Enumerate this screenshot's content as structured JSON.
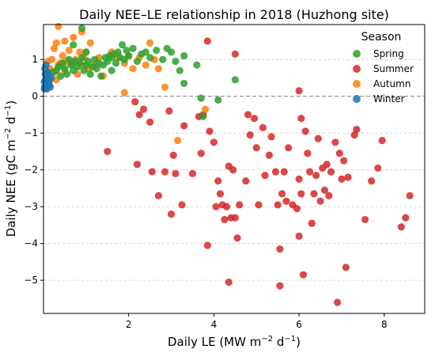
{
  "chart_data": {
    "type": "scatter",
    "title": "Daily NEE–LE relationship in 2018 (Huzhong site)",
    "xlabel": {
      "main": "Daily LE (MW m",
      "sup": "−2",
      "mid": " d",
      "sup2": "−1",
      "end": ")"
    },
    "ylabel": {
      "main": "Daily NEE (gC m",
      "sup": "−2",
      "mid": " d",
      "sup2": "−1",
      "end": ")"
    },
    "xlim": [
      0.0,
      8.95
    ],
    "ylim": [
      -5.9,
      1.95
    ],
    "xticks": [
      2,
      4,
      6,
      8
    ],
    "yticks": [
      -5,
      -4,
      -3,
      -2,
      -1,
      0,
      1
    ],
    "xtick_labels": [
      "2",
      "4",
      "6",
      "8"
    ],
    "ytick_labels": [
      "−5",
      "−4",
      "−3",
      "−2",
      "−1",
      "0",
      "1"
    ],
    "grid": "horizontal-dashed",
    "zero_line": "dashed",
    "legend": {
      "title": "Season",
      "placement": "top-right"
    },
    "series": [
      {
        "name": "Spring",
        "color": "#2ca02c",
        "points": [
          [
            0.1,
            0.6
          ],
          [
            0.2,
            0.65
          ],
          [
            0.3,
            0.7
          ],
          [
            0.35,
            0.8
          ],
          [
            0.4,
            0.55
          ],
          [
            0.45,
            0.9
          ],
          [
            0.5,
            0.75
          ],
          [
            0.55,
            0.6
          ],
          [
            0.6,
            1.0
          ],
          [
            0.65,
            0.85
          ],
          [
            0.7,
            0.7
          ],
          [
            0.75,
            0.95
          ],
          [
            0.8,
            0.8
          ],
          [
            0.85,
            0.9
          ],
          [
            0.9,
            1.05
          ],
          [
            0.95,
            0.7
          ],
          [
            1.0,
            0.85
          ],
          [
            1.05,
            0.95
          ],
          [
            1.1,
            0.6
          ],
          [
            1.15,
            0.8
          ],
          [
            1.2,
            1.0
          ],
          [
            1.25,
            0.75
          ],
          [
            1.3,
            0.9
          ],
          [
            1.35,
            0.55
          ],
          [
            1.4,
            0.85
          ],
          [
            1.45,
            1.05
          ],
          [
            1.5,
            0.95
          ],
          [
            1.55,
            1.1
          ],
          [
            1.6,
            0.7
          ],
          [
            1.65,
            1.15
          ],
          [
            1.7,
            0.9
          ],
          [
            1.75,
            1.2
          ],
          [
            1.8,
            1.05
          ],
          [
            1.85,
            1.4
          ],
          [
            1.9,
            1.0
          ],
          [
            1.95,
            1.25
          ],
          [
            2.0,
            1.1
          ],
          [
            2.1,
            1.3
          ],
          [
            2.2,
            0.95
          ],
          [
            2.3,
            1.15
          ],
          [
            2.4,
            1.2
          ],
          [
            2.5,
            1.05
          ],
          [
            2.65,
            1.25
          ],
          [
            2.8,
            1.0
          ],
          [
            2.9,
            1.3
          ],
          [
            3.0,
            1.2
          ],
          [
            3.1,
            0.95
          ],
          [
            3.2,
            0.7
          ],
          [
            3.3,
            1.1
          ],
          [
            3.3,
            0.35
          ],
          [
            3.6,
            0.85
          ],
          [
            3.7,
            -0.05
          ],
          [
            3.75,
            -0.55
          ],
          [
            4.1,
            -0.1
          ],
          [
            4.5,
            0.45
          ],
          [
            0.9,
            1.85
          ],
          [
            0.7,
            1.4
          ],
          [
            1.0,
            1.2
          ],
          [
            1.6,
            1.05
          ]
        ]
      },
      {
        "name": "Summer",
        "color": "#d62728",
        "points": [
          [
            1.5,
            -1.5
          ],
          [
            2.15,
            -0.15
          ],
          [
            2.2,
            -1.85
          ],
          [
            2.25,
            -0.5
          ],
          [
            2.35,
            -0.35
          ],
          [
            2.5,
            -0.7
          ],
          [
            2.55,
            -2.05
          ],
          [
            2.7,
            -2.7
          ],
          [
            2.85,
            -2.05
          ],
          [
            2.95,
            -0.4
          ],
          [
            3.0,
            -3.2
          ],
          [
            3.05,
            -1.6
          ],
          [
            3.1,
            -2.1
          ],
          [
            3.25,
            -2.95
          ],
          [
            3.3,
            -0.8
          ],
          [
            3.5,
            -2.1
          ],
          [
            3.65,
            -0.55
          ],
          [
            3.7,
            -1.55
          ],
          [
            3.75,
            -0.5
          ],
          [
            3.85,
            -4.05
          ],
          [
            3.85,
            1.5
          ],
          [
            3.9,
            -0.95
          ],
          [
            4.0,
            -1.25
          ],
          [
            4.05,
            -3.0
          ],
          [
            4.1,
            -2.3
          ],
          [
            4.15,
            -2.65
          ],
          [
            4.2,
            -2.95
          ],
          [
            4.25,
            -3.35
          ],
          [
            4.3,
            -3.0
          ],
          [
            4.35,
            -1.9
          ],
          [
            4.35,
            -5.05
          ],
          [
            4.4,
            -3.3
          ],
          [
            4.45,
            -2.0
          ],
          [
            4.5,
            -3.3
          ],
          [
            4.55,
            -3.85
          ],
          [
            4.5,
            1.15
          ],
          [
            4.6,
            -2.95
          ],
          [
            4.75,
            -2.3
          ],
          [
            4.8,
            -0.5
          ],
          [
            4.85,
            -1.05
          ],
          [
            4.95,
            -0.6
          ],
          [
            5.0,
            -1.4
          ],
          [
            5.05,
            -2.95
          ],
          [
            5.15,
            -0.85
          ],
          [
            5.2,
            -2.15
          ],
          [
            5.3,
            -1.6
          ],
          [
            5.35,
            -1.1
          ],
          [
            5.45,
            -2.05
          ],
          [
            5.5,
            -2.95
          ],
          [
            5.55,
            -4.15
          ],
          [
            5.55,
            -5.15
          ],
          [
            5.6,
            -2.65
          ],
          [
            5.65,
            -2.05
          ],
          [
            5.7,
            -2.85
          ],
          [
            5.75,
            -1.4
          ],
          [
            5.85,
            -2.95
          ],
          [
            5.95,
            -3.05
          ],
          [
            6.0,
            -2.25
          ],
          [
            6.0,
            -3.8
          ],
          [
            6.05,
            -2.65
          ],
          [
            6.05,
            -0.6
          ],
          [
            6.1,
            -4.85
          ],
          [
            6.15,
            -0.95
          ],
          [
            6.2,
            -1.55
          ],
          [
            6.25,
            -2.05
          ],
          [
            6.3,
            -3.45
          ],
          [
            6.35,
            -2.65
          ],
          [
            6.4,
            -2.15
          ],
          [
            6.45,
            -1.15
          ],
          [
            6.5,
            -2.85
          ],
          [
            6.55,
            -1.95
          ],
          [
            6.6,
            -2.55
          ],
          [
            6.65,
            -1.85
          ],
          [
            6.7,
            -2.7
          ],
          [
            6.75,
            -2.05
          ],
          [
            6.0,
            0.15
          ],
          [
            6.85,
            -1.25
          ],
          [
            6.9,
            -5.6
          ],
          [
            6.95,
            -1.55
          ],
          [
            7.0,
            -2.25
          ],
          [
            7.05,
            -1.75
          ],
          [
            7.1,
            -4.65
          ],
          [
            7.15,
            -2.2
          ],
          [
            7.3,
            -1.05
          ],
          [
            7.35,
            -0.9
          ],
          [
            7.55,
            -3.35
          ],
          [
            7.7,
            -2.3
          ],
          [
            7.85,
            -1.95
          ],
          [
            7.95,
            -1.2
          ],
          [
            8.4,
            -3.55
          ],
          [
            8.5,
            -3.3
          ],
          [
            8.6,
            -2.7
          ]
        ]
      },
      {
        "name": "Autumn",
        "color": "#ff7f0e",
        "points": [
          [
            0.1,
            0.95
          ],
          [
            0.15,
            0.75
          ],
          [
            0.2,
            1.0
          ],
          [
            0.25,
            0.65
          ],
          [
            0.3,
            1.45
          ],
          [
            0.35,
            1.9
          ],
          [
            0.35,
            0.85
          ],
          [
            0.4,
            0.9
          ],
          [
            0.45,
            1.1
          ],
          [
            0.5,
            0.7
          ],
          [
            0.55,
            0.95
          ],
          [
            0.6,
            1.25
          ],
          [
            0.65,
            0.9
          ],
          [
            0.7,
            1.6
          ],
          [
            0.75,
            1.0
          ],
          [
            0.8,
            0.6
          ],
          [
            0.85,
            1.2
          ],
          [
            0.9,
            0.85
          ],
          [
            0.95,
            1.05
          ],
          [
            1.0,
            1.2
          ],
          [
            1.05,
            0.75
          ],
          [
            1.1,
            1.45
          ],
          [
            1.2,
            0.85
          ],
          [
            1.3,
            1.05
          ],
          [
            1.4,
            0.55
          ],
          [
            1.6,
            1.2
          ],
          [
            1.75,
            1.05
          ],
          [
            1.9,
            0.9
          ],
          [
            2.0,
            1.1
          ],
          [
            2.1,
            0.75
          ],
          [
            2.25,
            1.05
          ],
          [
            2.4,
            0.85
          ],
          [
            2.5,
            1.45
          ],
          [
            2.6,
            1.0
          ],
          [
            2.7,
            0.75
          ],
          [
            2.85,
            0.25
          ],
          [
            3.15,
            -1.2
          ],
          [
            3.8,
            -0.35
          ],
          [
            0.9,
            1.75
          ],
          [
            0.5,
            1.5
          ],
          [
            1.9,
            0.1
          ],
          [
            0.3,
            0.45
          ],
          [
            0.25,
            1.3
          ]
        ]
      },
      {
        "name": "Winter",
        "color": "#1f77b4",
        "points": [
          [
            0.02,
            0.2
          ],
          [
            0.03,
            0.25
          ],
          [
            0.05,
            0.3
          ],
          [
            0.06,
            0.35
          ],
          [
            0.08,
            0.2
          ],
          [
            0.1,
            0.25
          ],
          [
            0.12,
            0.4
          ],
          [
            0.14,
            0.3
          ],
          [
            0.16,
            0.25
          ],
          [
            0.18,
            0.5
          ],
          [
            0.05,
            0.45
          ],
          [
            0.08,
            0.55
          ],
          [
            0.1,
            0.65
          ],
          [
            0.03,
            0.75
          ],
          [
            0.06,
            0.85
          ],
          [
            0.04,
            0.6
          ],
          [
            0.12,
            0.35
          ],
          [
            0.15,
            0.45
          ],
          [
            0.02,
            0.4
          ],
          [
            0.07,
            0.3
          ]
        ]
      }
    ]
  }
}
